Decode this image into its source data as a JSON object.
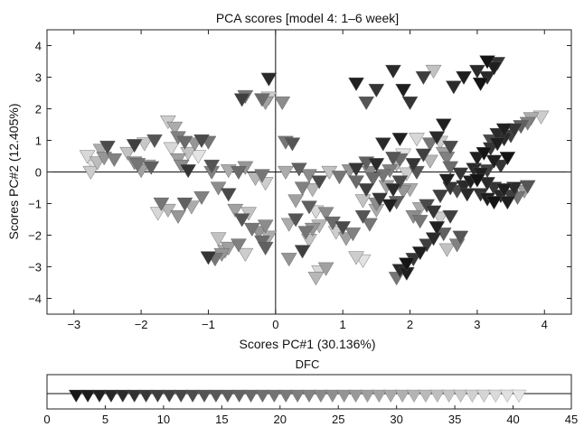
{
  "chart_data": [
    {
      "type": "scatter",
      "title": "PCA scores [model 4: 1–6 week]",
      "xlabel": "Scores PC#1 (30.136%)",
      "ylabel": "Scores PC#2 (12.405%)",
      "xlim": [
        -3.4,
        4.4
      ],
      "ylim": [
        -4.5,
        4.5
      ],
      "xticks": [
        -3,
        -2,
        -1,
        0,
        1,
        2,
        3,
        4
      ],
      "yticks": [
        -4,
        -3,
        -2,
        -1,
        0,
        1,
        2,
        3,
        4
      ],
      "xtick_labels": [
        "−3",
        "−2",
        "−1",
        "0",
        "1",
        "2",
        "3",
        "4"
      ],
      "ytick_labels": [
        "−4",
        "−3",
        "−2",
        "−1",
        "0",
        "1",
        "2",
        "3",
        "4"
      ],
      "grid": false,
      "reference_lines": {
        "x": 0,
        "y": 0
      },
      "marker": "triangle-down",
      "color_by": "DFC",
      "points": [
        [
          -2.8,
          0.5,
          38
        ],
        [
          -2.7,
          0.2,
          40
        ],
        [
          -2.75,
          0.0,
          36
        ],
        [
          -2.6,
          0.7,
          30
        ],
        [
          -2.5,
          0.8,
          12
        ],
        [
          -2.55,
          0.45,
          26
        ],
        [
          -2.65,
          0.3,
          33
        ],
        [
          -2.4,
          0.4,
          22
        ],
        [
          -2.2,
          0.6,
          34
        ],
        [
          -2.1,
          0.85,
          10
        ],
        [
          -2.1,
          0.3,
          24
        ],
        [
          -2.0,
          0.05,
          28
        ],
        [
          -2.05,
          0.25,
          20
        ],
        [
          -1.9,
          0.2,
          32
        ],
        [
          -1.85,
          0.15,
          16
        ],
        [
          -1.95,
          0.9,
          35
        ],
        [
          -1.8,
          1.0,
          14
        ],
        [
          -1.6,
          1.6,
          36
        ],
        [
          -1.5,
          1.4,
          30
        ],
        [
          -1.45,
          1.1,
          22
        ],
        [
          -1.35,
          0.95,
          18
        ],
        [
          -1.2,
          0.9,
          26
        ],
        [
          -1.1,
          1.0,
          12
        ],
        [
          -1.0,
          0.95,
          20
        ],
        [
          -1.55,
          0.75,
          38
        ],
        [
          -1.3,
          0.6,
          34
        ],
        [
          -1.15,
          0.5,
          40
        ],
        [
          -1.45,
          0.4,
          28
        ],
        [
          -1.4,
          0.2,
          24
        ],
        [
          -0.95,
          0.2,
          14
        ],
        [
          -1.3,
          0.05,
          8
        ],
        [
          -0.95,
          0.0,
          22
        ],
        [
          -0.7,
          0.05,
          30
        ],
        [
          -0.55,
          0.0,
          18
        ],
        [
          -0.45,
          0.15,
          26
        ],
        [
          -0.3,
          -0.2,
          32
        ],
        [
          -0.2,
          -0.1,
          20
        ],
        [
          -0.15,
          -0.35,
          36
        ],
        [
          -1.7,
          -1.0,
          20
        ],
        [
          -1.75,
          -1.3,
          38
        ],
        [
          -1.6,
          -1.2,
          32
        ],
        [
          -1.45,
          -1.4,
          26
        ],
        [
          -1.35,
          -1.0,
          16
        ],
        [
          -1.25,
          -1.1,
          30
        ],
        [
          -1.1,
          -0.8,
          22
        ],
        [
          -0.85,
          -0.5,
          24
        ],
        [
          -0.7,
          -0.7,
          12
        ],
        [
          -0.6,
          -1.2,
          28
        ],
        [
          -0.5,
          -1.5,
          14
        ],
        [
          -0.4,
          -1.3,
          34
        ],
        [
          -0.35,
          -1.8,
          20
        ],
        [
          -0.25,
          -1.9,
          26
        ],
        [
          -0.2,
          -2.2,
          18
        ],
        [
          -0.15,
          -1.7,
          24
        ],
        [
          -0.1,
          -2.05,
          30
        ],
        [
          -0.15,
          -2.4,
          16
        ],
        [
          -0.55,
          -2.3,
          22
        ],
        [
          -0.45,
          -2.6,
          36
        ],
        [
          -0.7,
          -2.4,
          28
        ],
        [
          -0.85,
          -2.1,
          34
        ],
        [
          -1.0,
          -2.7,
          8
        ],
        [
          -0.9,
          -2.75,
          20
        ],
        [
          -0.8,
          -2.6,
          26
        ],
        [
          -0.75,
          -2.5,
          30
        ],
        [
          -0.2,
          2.3,
          18
        ],
        [
          -0.15,
          2.2,
          28
        ],
        [
          -0.1,
          2.35,
          36
        ],
        [
          0.1,
          2.2,
          24
        ],
        [
          -0.5,
          2.3,
          10
        ],
        [
          -0.45,
          2.4,
          20
        ],
        [
          -0.1,
          2.95,
          6
        ],
        [
          0.15,
          0.95,
          20
        ],
        [
          0.25,
          0.9,
          14
        ],
        [
          0.15,
          0.0,
          30
        ],
        [
          0.35,
          0.1,
          16
        ],
        [
          0.5,
          -0.1,
          24
        ],
        [
          0.65,
          -0.3,
          12
        ],
        [
          0.8,
          0.0,
          34
        ],
        [
          0.95,
          -0.15,
          20
        ],
        [
          1.1,
          0.05,
          26
        ],
        [
          1.2,
          -0.3,
          18
        ],
        [
          0.55,
          -0.55,
          32
        ],
        [
          0.4,
          -0.5,
          22
        ],
        [
          0.3,
          -0.9,
          28
        ],
        [
          0.5,
          -1.1,
          16
        ],
        [
          0.6,
          -1.25,
          38
        ],
        [
          0.75,
          -1.3,
          24
        ],
        [
          0.3,
          -1.5,
          14
        ],
        [
          0.2,
          -1.65,
          30
        ],
        [
          0.45,
          -1.9,
          20
        ],
        [
          0.55,
          -1.8,
          26
        ],
        [
          0.65,
          -1.7,
          32
        ],
        [
          0.85,
          -1.6,
          18
        ],
        [
          0.9,
          -1.9,
          36
        ],
        [
          1.0,
          -1.75,
          12
        ],
        [
          1.05,
          -2.1,
          28
        ],
        [
          1.15,
          -1.95,
          22
        ],
        [
          0.5,
          -2.15,
          34
        ],
        [
          0.4,
          -2.5,
          10
        ],
        [
          0.2,
          -2.75,
          26
        ],
        [
          0.65,
          -3.15,
          38
        ],
        [
          0.6,
          -3.35,
          32
        ],
        [
          0.75,
          -3.05,
          28
        ],
        [
          1.2,
          -2.7,
          36
        ],
        [
          1.3,
          -2.8,
          40
        ],
        [
          1.3,
          -1.4,
          14
        ],
        [
          1.4,
          -1.65,
          20
        ],
        [
          1.5,
          -1.2,
          30
        ],
        [
          1.2,
          0.1,
          8
        ],
        [
          1.35,
          0.3,
          16
        ],
        [
          1.4,
          0.0,
          24
        ],
        [
          1.5,
          0.25,
          6
        ],
        [
          1.45,
          -0.2,
          18
        ],
        [
          1.35,
          -0.55,
          10
        ],
        [
          1.6,
          -0.1,
          20
        ],
        [
          1.65,
          -0.45,
          28
        ],
        [
          1.75,
          0.45,
          14
        ],
        [
          1.6,
          0.9,
          6
        ],
        [
          1.8,
          0.25,
          32
        ],
        [
          1.7,
          0.05,
          22
        ],
        [
          1.85,
          -0.3,
          12
        ],
        [
          1.9,
          -0.6,
          26
        ],
        [
          1.55,
          -0.85,
          8
        ],
        [
          1.7,
          -1.05,
          4
        ],
        [
          1.95,
          -0.05,
          36
        ],
        [
          1.85,
          0.4,
          18
        ],
        [
          1.9,
          0.55,
          40
        ],
        [
          1.3,
          -0.9,
          34
        ],
        [
          1.5,
          -1.0,
          24
        ],
        [
          1.8,
          -0.95,
          16
        ],
        [
          2.0,
          -0.55,
          30
        ],
        [
          1.75,
          -0.55,
          6
        ],
        [
          2.05,
          0.25,
          8
        ],
        [
          2.1,
          0.0,
          14
        ],
        [
          2.2,
          0.55,
          10
        ],
        [
          2.3,
          0.9,
          20
        ],
        [
          2.4,
          1.1,
          6
        ],
        [
          2.45,
          0.95,
          36
        ],
        [
          2.5,
          0.6,
          28
        ],
        [
          2.6,
          0.8,
          12
        ],
        [
          2.55,
          0.45,
          22
        ],
        [
          2.6,
          0.15,
          18
        ],
        [
          2.3,
          0.35,
          32
        ],
        [
          2.1,
          1.05,
          38
        ],
        [
          1.85,
          1.05,
          4
        ],
        [
          2.15,
          -1.15,
          30
        ],
        [
          2.05,
          -1.4,
          24
        ],
        [
          2.15,
          -1.55,
          20
        ],
        [
          2.25,
          -1.05,
          12
        ],
        [
          2.35,
          -1.25,
          8
        ],
        [
          2.45,
          -1.45,
          36
        ],
        [
          2.4,
          -1.75,
          4
        ],
        [
          2.5,
          -1.95,
          16
        ],
        [
          2.35,
          -2.1,
          6
        ],
        [
          2.25,
          -2.3,
          10
        ],
        [
          2.15,
          -2.55,
          4
        ],
        [
          2.05,
          -2.75,
          8
        ],
        [
          1.95,
          -2.9,
          2
        ],
        [
          1.85,
          -3.1,
          6
        ],
        [
          1.95,
          -3.2,
          4
        ],
        [
          1.8,
          -3.35,
          20
        ],
        [
          2.55,
          -2.45,
          34
        ],
        [
          2.7,
          -2.3,
          22
        ],
        [
          2.75,
          -2.05,
          14
        ],
        [
          2.6,
          -1.4,
          10
        ],
        [
          2.6,
          -0.5,
          8
        ],
        [
          2.7,
          -0.6,
          12
        ],
        [
          2.8,
          -0.45,
          6
        ],
        [
          2.55,
          -0.25,
          4
        ],
        [
          2.45,
          -0.75,
          10
        ],
        [
          2.75,
          -0.05,
          8
        ],
        [
          2.9,
          -0.3,
          4
        ],
        [
          2.85,
          -0.7,
          6
        ],
        [
          3.0,
          -0.25,
          2
        ],
        [
          3.05,
          -0.7,
          8
        ],
        [
          3.15,
          -0.85,
          4
        ],
        [
          3.25,
          -0.95,
          2
        ],
        [
          3.35,
          -0.75,
          6
        ],
        [
          3.45,
          -0.95,
          4
        ],
        [
          3.5,
          -0.75,
          10
        ],
        [
          3.6,
          -0.8,
          20
        ],
        [
          3.7,
          -0.6,
          28
        ],
        [
          3.75,
          -0.45,
          14
        ],
        [
          3.55,
          -0.5,
          6
        ],
        [
          3.4,
          -0.55,
          4
        ],
        [
          3.25,
          -0.5,
          8
        ],
        [
          3.15,
          -0.35,
          6
        ],
        [
          3.05,
          -0.05,
          4
        ],
        [
          2.95,
          0.1,
          6
        ],
        [
          3.0,
          0.45,
          4
        ],
        [
          3.1,
          0.6,
          2
        ],
        [
          3.2,
          0.75,
          8
        ],
        [
          3.3,
          0.9,
          4
        ],
        [
          3.4,
          1.05,
          6
        ],
        [
          3.5,
          1.15,
          10
        ],
        [
          3.55,
          1.35,
          8
        ],
        [
          3.65,
          1.45,
          16
        ],
        [
          3.75,
          1.55,
          22
        ],
        [
          3.8,
          1.7,
          30
        ],
        [
          3.95,
          1.75,
          36
        ],
        [
          3.4,
          1.35,
          4
        ],
        [
          3.3,
          1.2,
          6
        ],
        [
          3.2,
          1.0,
          12
        ],
        [
          3.35,
          0.2,
          8
        ],
        [
          3.25,
          0.35,
          4
        ],
        [
          3.45,
          0.45,
          2
        ],
        [
          3.15,
          0.05,
          10
        ],
        [
          2.8,
          3.0,
          4
        ],
        [
          3.0,
          3.2,
          6
        ],
        [
          3.15,
          3.5,
          2
        ],
        [
          3.3,
          3.45,
          8
        ],
        [
          3.25,
          3.3,
          4
        ],
        [
          3.15,
          3.0,
          6
        ],
        [
          2.35,
          3.2,
          34
        ],
        [
          2.2,
          3.0,
          10
        ],
        [
          1.75,
          3.2,
          6
        ],
        [
          1.9,
          2.6,
          4
        ],
        [
          2.0,
          2.2,
          8
        ],
        [
          2.65,
          2.7,
          6
        ],
        [
          2.5,
          1.5,
          4
        ],
        [
          3.05,
          2.8,
          2
        ],
        [
          1.5,
          2.6,
          8
        ],
        [
          1.35,
          2.2,
          14
        ],
        [
          1.2,
          2.8,
          4
        ]
      ]
    },
    {
      "type": "colorbar",
      "title": "DFC",
      "xlim": [
        0,
        45
      ],
      "xticks": [
        0,
        5,
        10,
        15,
        20,
        25,
        30,
        35,
        40,
        45
      ],
      "xtick_labels": [
        "0",
        "5",
        "10",
        "15",
        "20",
        "25",
        "30",
        "35",
        "40",
        "45"
      ],
      "values": [
        2.5,
        3.5,
        4.5,
        5.5,
        6.5,
        7.5,
        8.5,
        9.5,
        10.5,
        11.5,
        12.5,
        13.5,
        14.5,
        15.5,
        16.5,
        17.5,
        18.5,
        19.5,
        20.5,
        21.5,
        22.5,
        23.5,
        24.5,
        25.5,
        26.5,
        27.5,
        28.5,
        29.5,
        30.5,
        31.5,
        32.5,
        33.5,
        34.5,
        35.5,
        36.5,
        37.5,
        38.5,
        39.5,
        40.5
      ],
      "color_range": [
        "#141414",
        "#e8e8e8"
      ]
    }
  ]
}
